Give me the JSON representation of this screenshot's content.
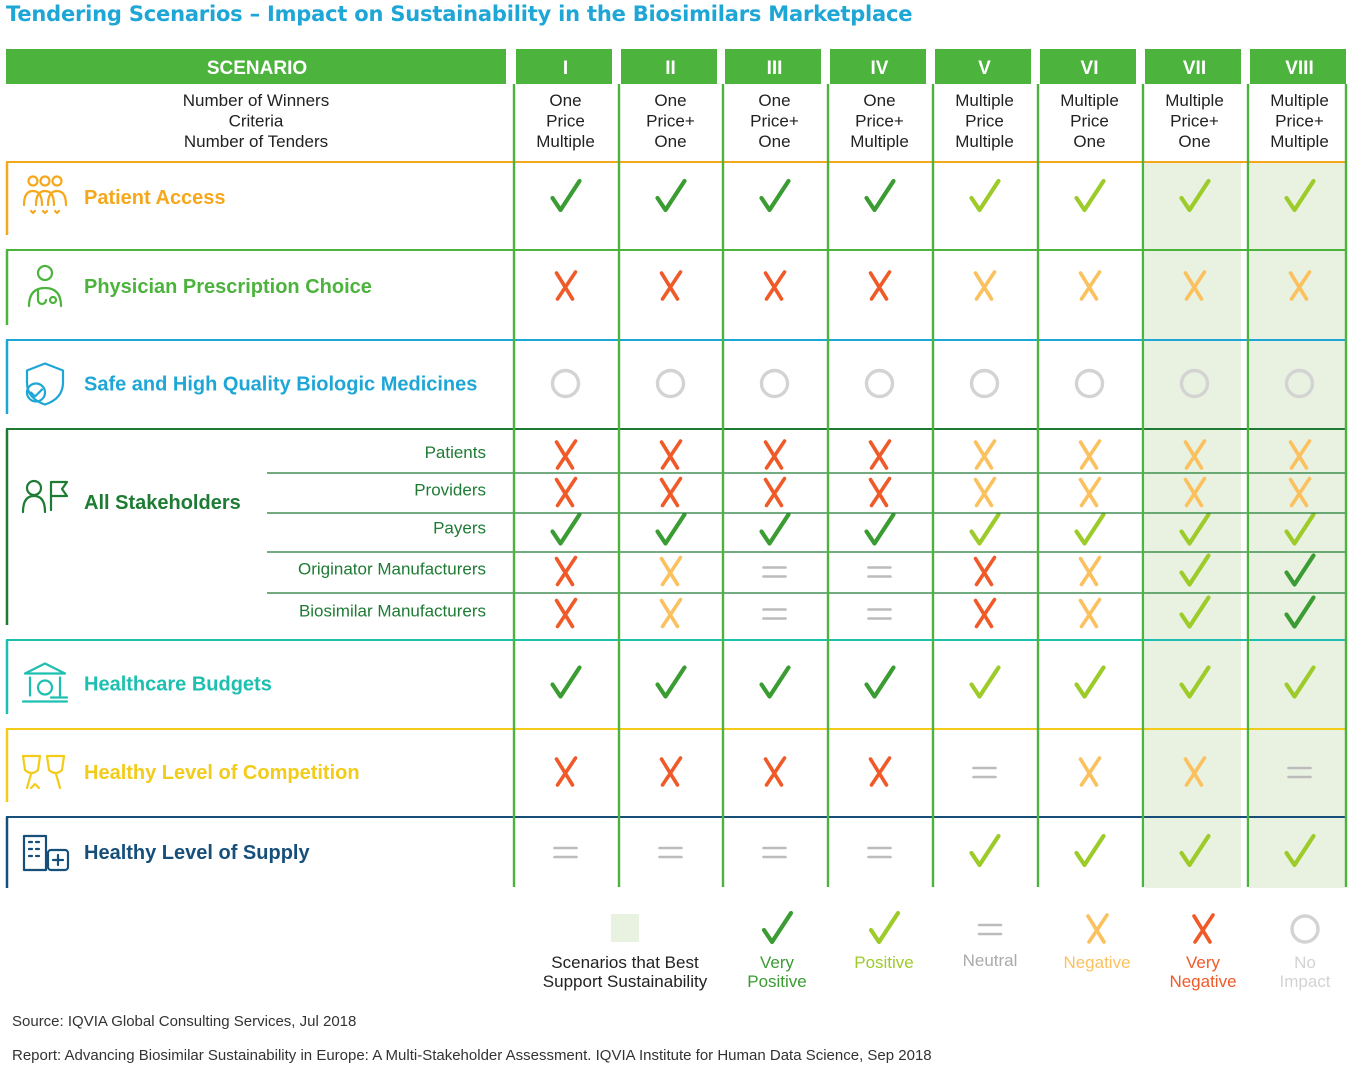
{
  "title": "Tendering Scenarios – Impact on Sustainability in the Biosimilars Marketplace",
  "header": {
    "scenario_label": "SCENARIO",
    "criteria_lines": [
      "Number of Winners",
      "Criteria",
      "Number of Tenders"
    ]
  },
  "chart_data": {
    "type": "table",
    "columns": [
      {
        "id": "I",
        "lines": [
          "One",
          "Price",
          "Multiple"
        ]
      },
      {
        "id": "II",
        "lines": [
          "One",
          "Price+",
          "One"
        ]
      },
      {
        "id": "III",
        "lines": [
          "One",
          "Price+",
          "One"
        ]
      },
      {
        "id": "IV",
        "lines": [
          "One",
          "Price+",
          "Multiple"
        ]
      },
      {
        "id": "V",
        "lines": [
          "Multiple",
          "Price",
          "Multiple"
        ]
      },
      {
        "id": "VI",
        "lines": [
          "Multiple",
          "Price",
          "One"
        ]
      },
      {
        "id": "VII",
        "lines": [
          "Multiple",
          "Price+",
          "One"
        ],
        "best": true
      },
      {
        "id": "VIII",
        "lines": [
          "Multiple",
          "Price+",
          "Multiple"
        ],
        "best": true
      }
    ],
    "groups": [
      {
        "label": "Patient Access",
        "color": "#f5a81c",
        "icon": "people-hearts-icon",
        "rows": [
          {
            "label": "",
            "values": [
              "VP",
              "VP",
              "VP",
              "VP",
              "P",
              "P",
              "P",
              "P"
            ]
          }
        ]
      },
      {
        "label": "Physician Prescription Choice",
        "color": "#4cb33d",
        "icon": "physician-icon",
        "rows": [
          {
            "label": "",
            "values": [
              "VN",
              "VN",
              "VN",
              "VN",
              "N",
              "N",
              "N",
              "N"
            ]
          }
        ]
      },
      {
        "label": "Safe and High Quality Biologic Medicines",
        "color": "#1ea6d6",
        "icon": "shield-check-icon",
        "rows": [
          {
            "label": "",
            "values": [
              "NI",
              "NI",
              "NI",
              "NI",
              "NI",
              "NI",
              "NI",
              "NI"
            ]
          }
        ]
      },
      {
        "label": "All Stakeholders",
        "color": "#1e7b34",
        "icon": "person-flag-icon",
        "rows": [
          {
            "label": "Patients",
            "values": [
              "VN",
              "VN",
              "VN",
              "VN",
              "N",
              "N",
              "N",
              "N"
            ]
          },
          {
            "label": "Providers",
            "values": [
              "VN",
              "VN",
              "VN",
              "VN",
              "N",
              "N",
              "N",
              "N"
            ]
          },
          {
            "label": "Payers",
            "values": [
              "VP",
              "VP",
              "VP",
              "VP",
              "P",
              "P",
              "P",
              "P"
            ]
          },
          {
            "label": "Originator Manufacturers",
            "values": [
              "VN",
              "N",
              "NE",
              "NE",
              "VN",
              "N",
              "P",
              "VP"
            ]
          },
          {
            "label": "Biosimilar Manufacturers",
            "values": [
              "VN",
              "N",
              "NE",
              "NE",
              "VN",
              "N",
              "P",
              "VP"
            ]
          }
        ]
      },
      {
        "label": "Healthcare Budgets",
        "color": "#1dbfb0",
        "icon": "bank-coin-icon",
        "rows": [
          {
            "label": "",
            "values": [
              "VP",
              "VP",
              "VP",
              "VP",
              "P",
              "P",
              "P",
              "P"
            ]
          }
        ]
      },
      {
        "label": "Healthy Level of Competition",
        "color": "#f3cc1a",
        "icon": "trophies-icon",
        "rows": [
          {
            "label": "",
            "values": [
              "VN",
              "VN",
              "VN",
              "VN",
              "NE",
              "N",
              "N",
              "NE"
            ]
          }
        ]
      },
      {
        "label": "Healthy Level of Supply",
        "color": "#174f7b",
        "icon": "buildings-medical-icon",
        "rows": [
          {
            "label": "",
            "values": [
              "NE",
              "NE",
              "NE",
              "NE",
              "P",
              "P",
              "P",
              "P"
            ]
          }
        ]
      }
    ],
    "legend": [
      {
        "key": "BEST",
        "lines": [
          "Scenarios that Best",
          "Support Sustainability"
        ]
      },
      {
        "key": "VP",
        "lines": [
          "Very",
          "Positive"
        ]
      },
      {
        "key": "P",
        "lines": [
          "Positive"
        ]
      },
      {
        "key": "NE",
        "lines": [
          "Neutral"
        ]
      },
      {
        "key": "N",
        "lines": [
          "Negative"
        ]
      },
      {
        "key": "VN",
        "lines": [
          "Very",
          "Negative"
        ]
      },
      {
        "key": "NI",
        "lines": [
          "No",
          "Impact"
        ]
      }
    ]
  },
  "colors": {
    "header_green": "#4cb33d",
    "best_shade": "#e9f2e1",
    "very_positive": "#3a9c32",
    "positive": "#9ccb2a",
    "neutral": "#bcbcbc",
    "negative": "#fbc15f",
    "very_negative": "#ef5a28",
    "no_impact": "#d3d3d3"
  },
  "footer": {
    "source": "Source: IQVIA Global Consulting Services, Jul 2018",
    "report": "Report: Advancing Biosimilar Sustainability in Europe: A Multi-Stakeholder Assessment. IQVIA Institute for Human Data Science, Sep 2018"
  }
}
